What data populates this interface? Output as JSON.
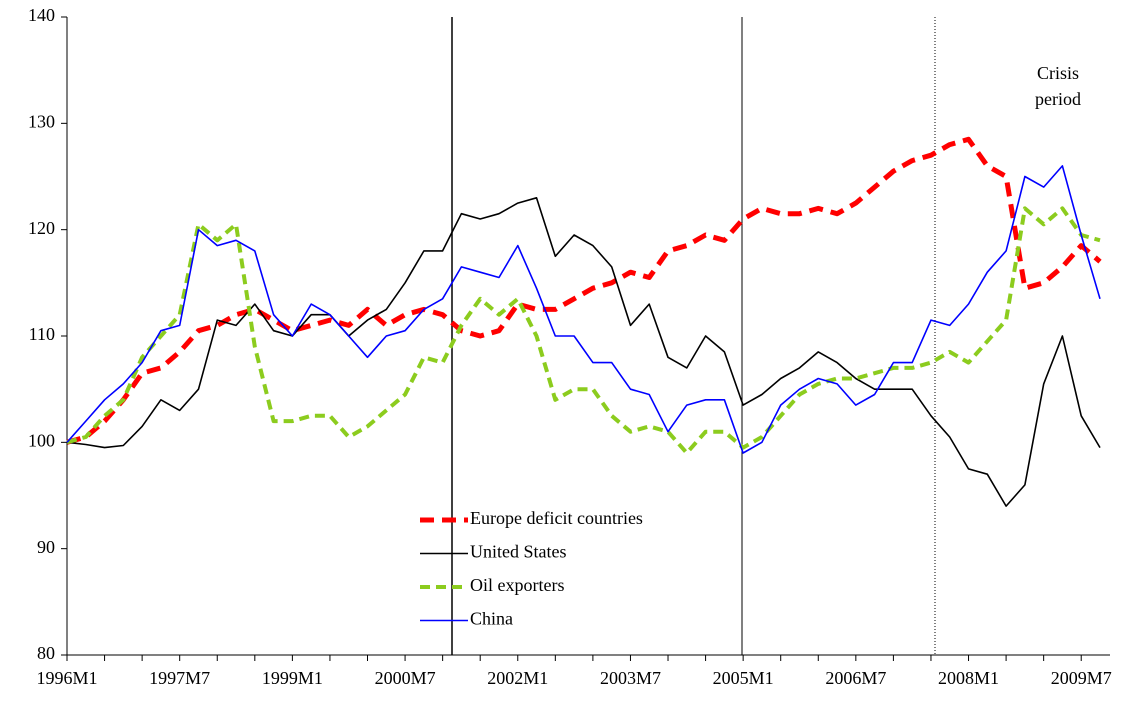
{
  "chart_data": {
    "type": "line",
    "categories": [
      "1996M1",
      null,
      null,
      null,
      null,
      null,
      "1997M7",
      null,
      null,
      null,
      null,
      null,
      "1999M1",
      null,
      null,
      null,
      null,
      null,
      "2000M7",
      null,
      null,
      null,
      null,
      null,
      "2002M1",
      null,
      null,
      null,
      null,
      null,
      "2003M7",
      null,
      null,
      null,
      null,
      null,
      "2005M1",
      null,
      null,
      null,
      null,
      null,
      "2006M7",
      null,
      null,
      null,
      null,
      null,
      "2008M1",
      null,
      null,
      null,
      null,
      null,
      "2009M7",
      null
    ],
    "series": [
      {
        "name": "Europe deficit countries",
        "color": "#ff0000",
        "dashed": true,
        "values": [
          100,
          100.5,
          102,
          104,
          106.5,
          107,
          108.5,
          110.5,
          111,
          112,
          112.5,
          111.5,
          110.5,
          111,
          111.5,
          111,
          112.5,
          111,
          112,
          112.5,
          112,
          110.5,
          110,
          110.5,
          113,
          112.5,
          112.5,
          113.5,
          114.5,
          115,
          116,
          115.5,
          118,
          118.5,
          119.5,
          119,
          121,
          122,
          121.5,
          121.5,
          122,
          121.5,
          122.5,
          124,
          125.5,
          126.5,
          127,
          128,
          128.5,
          126,
          125,
          114.5,
          115,
          116.5,
          118.5,
          117
        ]
      },
      {
        "name": "United States",
        "color": "#000000",
        "dashed": false,
        "values": [
          100,
          99.8,
          99.5,
          99.7,
          101.5,
          104,
          103,
          105,
          111.5,
          111,
          113,
          110.5,
          110,
          112,
          112,
          110,
          111.5,
          112.5,
          115,
          118,
          118,
          121.5,
          121,
          121.5,
          122.5,
          123,
          117.5,
          119.5,
          118.5,
          116.5,
          111,
          113,
          108,
          107,
          110,
          108.5,
          103.5,
          104.5,
          106,
          107,
          108.5,
          107.5,
          106,
          105,
          105,
          105,
          102.5,
          100.5,
          97.5,
          97,
          94,
          96,
          105.5,
          110,
          102.5,
          99.5
        ]
      },
      {
        "name": "Oil exporters",
        "color": "#8ccc1e",
        "dashed": true,
        "values": [
          100,
          100.5,
          102.5,
          104,
          108,
          110,
          112,
          120.5,
          119,
          120.5,
          109,
          102,
          102,
          102.5,
          102.5,
          100.5,
          101.5,
          103,
          104.5,
          108,
          107.5,
          111,
          113.5,
          112,
          113.5,
          110,
          104,
          105,
          105,
          102.5,
          101,
          101.5,
          101,
          99,
          101,
          101,
          99.5,
          100.5,
          102.5,
          104.5,
          105.5,
          106,
          106,
          106.5,
          107,
          107,
          107.5,
          108.5,
          107.5,
          109.5,
          111.5,
          122,
          120.5,
          122,
          119.5,
          119
        ]
      },
      {
        "name": "China",
        "color": "#0000ff",
        "dashed": false,
        "values": [
          100,
          102,
          104,
          105.5,
          107.5,
          110.5,
          111,
          120,
          118.5,
          119,
          118,
          112,
          110,
          113,
          112,
          110,
          108,
          110,
          110.5,
          112.5,
          113.5,
          116.5,
          116,
          115.5,
          118.5,
          114.5,
          110,
          110,
          107.5,
          107.5,
          105,
          104.5,
          101,
          103.5,
          104,
          104,
          99,
          100,
          103.5,
          105,
          106,
          105.5,
          103.5,
          104.5,
          107.5,
          107.5,
          111.5,
          111,
          113,
          116,
          118,
          125,
          124,
          126,
          119.5,
          113.5
        ]
      }
    ],
    "ylim": [
      80,
      140
    ],
    "yticks": [
      80,
      90,
      100,
      110,
      120,
      130,
      140
    ],
    "annotation": [
      "Crisis",
      "period"
    ],
    "grid": false
  }
}
